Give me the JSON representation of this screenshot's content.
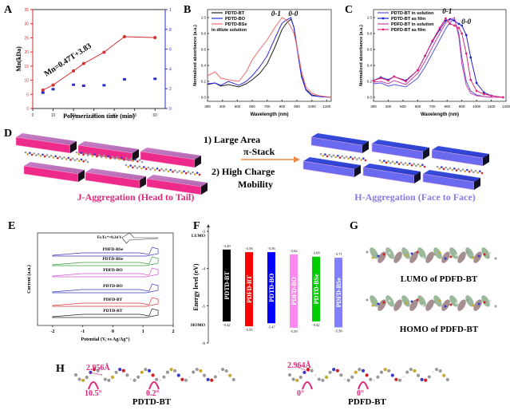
{
  "panels": {
    "A": "A",
    "B": "B",
    "C": "C",
    "D": "D",
    "E": "E",
    "F": "F",
    "G": "G",
    "H": "H"
  },
  "chart_data": [
    {
      "id": "A",
      "type": "scatter",
      "title": "",
      "xlabel": "Polymerization time (min)",
      "ylabel": "Mn(kDa)",
      "y2label": "PDI",
      "xlim": [
        0,
        65
      ],
      "ylim": [
        0,
        35
      ],
      "y2lim": [
        0,
        10
      ],
      "xticks": [
        0,
        10,
        20,
        30,
        40,
        50,
        60
      ],
      "yticks": [
        0,
        5,
        10,
        15,
        20,
        25,
        30,
        35
      ],
      "y2ticks": [
        0,
        2,
        4,
        6,
        8,
        10
      ],
      "annotation": "Mn=0.47T+3.83",
      "series": [
        {
          "name": "Mn",
          "axis": "left",
          "color": "#d62e2e",
          "x": [
            5,
            10,
            20,
            25,
            35,
            45,
            60
          ],
          "values": [
            6.5,
            8.3,
            13.3,
            15.9,
            19.9,
            25.4,
            25.1
          ]
        },
        {
          "name": "PDI",
          "axis": "right",
          "color": "#2c2cc8",
          "x": [
            5,
            10,
            20,
            25,
            35,
            45,
            60
          ],
          "values": [
            1.6,
            1.95,
            2.4,
            2.3,
            2.35,
            2.95,
            3.0
          ]
        }
      ]
    },
    {
      "id": "B",
      "type": "line",
      "xlabel": "Wavelength (nm)",
      "ylabel": "Normalized absorbance (a.u.)",
      "xlim": [
        300,
        1130
      ],
      "ylim": [
        -0.05,
        1.1
      ],
      "xticks": [
        300,
        400,
        500,
        600,
        700,
        800,
        900,
        1000,
        1100
      ],
      "yticks": [
        0.0,
        0.2,
        0.4,
        0.6,
        0.8,
        1.0
      ],
      "legend_note": "in dilute solution",
      "annotations": [
        "0-1",
        "0-0"
      ],
      "x": [
        300,
        350,
        390,
        440,
        510,
        560,
        600,
        650,
        700,
        750,
        800,
        830,
        860,
        880,
        900,
        930,
        960,
        1000,
        1050,
        1130
      ],
      "series": [
        {
          "name": "PDTD-BT",
          "color": "#222222",
          "values": [
            0.16,
            0.18,
            0.14,
            0.16,
            0.13,
            0.17,
            0.22,
            0.3,
            0.42,
            0.62,
            0.85,
            0.93,
            0.98,
            0.88,
            0.64,
            0.28,
            0.1,
            0.03,
            0.01,
            0.0
          ]
        },
        {
          "name": "PDTD-BO",
          "color": "#2e2ee0",
          "values": [
            0.17,
            0.18,
            0.15,
            0.2,
            0.15,
            0.2,
            0.27,
            0.38,
            0.52,
            0.73,
            0.93,
            0.97,
            1.0,
            0.87,
            0.62,
            0.26,
            0.09,
            0.02,
            0.01,
            0.0
          ]
        },
        {
          "name": "PDTD-BSe",
          "color": "#f06a6a",
          "values": [
            0.27,
            0.32,
            0.24,
            0.22,
            0.2,
            0.32,
            0.47,
            0.6,
            0.72,
            0.87,
            1.0,
            0.97,
            0.88,
            0.8,
            0.64,
            0.33,
            0.13,
            0.05,
            0.02,
            0.0
          ]
        }
      ]
    },
    {
      "id": "C",
      "type": "line",
      "xlabel": "Wavelength (nm)",
      "ylabel": "Normalized absorbance (a.u.)",
      "xlim": [
        300,
        1200
      ],
      "ylim": [
        -0.05,
        1.1
      ],
      "xticks": [
        300,
        400,
        500,
        600,
        700,
        800,
        900,
        1000,
        1100,
        1200
      ],
      "yticks": [
        0.0,
        0.2,
        0.4,
        0.6,
        0.8,
        1.0
      ],
      "annotations": [
        "0-1",
        "0-0"
      ],
      "x": [
        300,
        350,
        400,
        440,
        520,
        600,
        650,
        700,
        750,
        790,
        820,
        850,
        880,
        900,
        930,
        960,
        1000,
        1050,
        1100,
        1180
      ],
      "series": [
        {
          "name": "PDTD-BT in solution",
          "color": "#5555dd",
          "marker": false,
          "values": [
            0.17,
            0.18,
            0.14,
            0.16,
            0.13,
            0.24,
            0.38,
            0.55,
            0.72,
            0.86,
            0.94,
            0.98,
            0.8,
            0.5,
            0.2,
            0.08,
            0.03,
            0.01,
            0.0,
            0.0
          ]
        },
        {
          "name": "PDTD-BT as film",
          "color": "#2222cc",
          "marker": true,
          "values": [
            0.21,
            0.25,
            0.22,
            0.26,
            0.21,
            0.34,
            0.52,
            0.7,
            0.85,
            0.96,
            0.98,
            0.96,
            0.92,
            0.9,
            0.78,
            0.5,
            0.18,
            0.06,
            0.02,
            0.0
          ]
        },
        {
          "name": "PDFD-BT in solution",
          "color": "#cc44aa",
          "marker": false,
          "values": [
            0.19,
            0.2,
            0.17,
            0.21,
            0.16,
            0.3,
            0.45,
            0.63,
            0.8,
            0.93,
            0.97,
            1.0,
            0.75,
            0.42,
            0.15,
            0.05,
            0.02,
            0.01,
            0.0,
            0.0
          ]
        },
        {
          "name": "PDFD-BT as film",
          "color": "#e0287a",
          "marker": true,
          "values": [
            0.21,
            0.24,
            0.21,
            0.26,
            0.2,
            0.34,
            0.52,
            0.71,
            0.87,
            0.99,
            0.92,
            0.9,
            0.87,
            0.8,
            0.55,
            0.22,
            0.08,
            0.04,
            0.02,
            0.0
          ]
        }
      ]
    },
    {
      "id": "E",
      "type": "line",
      "xlabel": "Potential (V, vs Ag/Ag⁺)",
      "ylabel": "Current (a.u.)",
      "xlim": [
        -2.5,
        2
      ],
      "xticks": [
        -2,
        -1,
        0,
        1,
        2
      ],
      "reference_label": "Fc/Fc⁺=0.34 V",
      "series": [
        {
          "name": "PDFD-BSe",
          "color": "#3a3ab8"
        },
        {
          "name": "PDTD-BSe",
          "color": "#3c9a3c"
        },
        {
          "name": "PDFD-BO",
          "color": "#d455d4"
        },
        {
          "name": "PDTD-BO",
          "color": "#3a3ab8"
        },
        {
          "name": "PDFD-BT",
          "color": "#d43a3a"
        },
        {
          "name": "PDTD-BT",
          "color": "#222222"
        }
      ]
    },
    {
      "id": "F",
      "type": "bar",
      "ylabel": "Energy level (eV)",
      "ylim": [
        -6,
        -3
      ],
      "yticks": [
        -3,
        -4,
        -5,
        -6
      ],
      "lumo_label": "LUMO",
      "homo_label": "HOMO",
      "categories": [
        "PDTD-BT",
        "PDFD-BT",
        "PDTD-BO",
        "PDFD-BO",
        "PDTD-BSe",
        "PDFD-BSe"
      ],
      "lumo": [
        -3.49,
        -3.56,
        -3.56,
        -3.62,
        -3.68,
        -3.71
      ],
      "homo": [
        -5.42,
        -5.55,
        -5.47,
        -5.59,
        -5.42,
        -5.58
      ],
      "lumo_text": [
        "-3.49",
        "-3.56",
        "-3.56",
        "-3.62",
        "-3.68",
        "-3.71"
      ],
      "homo_text": [
        "-5.42",
        "-5.55",
        "-5.47",
        "-5.59",
        "-5.42",
        "-5.58"
      ],
      "colors": [
        "#000000",
        "#ff0000",
        "#0000ff",
        "#ff88f0",
        "#00cc00",
        "#8080ff"
      ]
    }
  ],
  "scheme_D": {
    "step1": "1)   Large Area",
    "step1b": "π-Stack",
    "step2": "2) High Charge",
    "step2b": "Mobility",
    "j_label": "J-Aggregation (Head to Tail)",
    "h_label": "H-Aggregation (Face to Face)",
    "j_color": "#e0287a",
    "h_color": "#8a7ae6",
    "arrow_color": "#f08a4a"
  },
  "panel_G": {
    "lumo_caption": "LUMO of PDFD-BT",
    "homo_caption": "HOMO of PDFD-BT"
  },
  "panel_H": {
    "left": {
      "name": "PDTD-BT",
      "distance": "2.956Å",
      "angle1": "10.5°",
      "angle2": "0.2°"
    },
    "right": {
      "name": "PDFD-BT",
      "distance": "2.964Å",
      "angle1": "0°",
      "angle2": "0°"
    },
    "annotation_color": "#e0287a"
  }
}
